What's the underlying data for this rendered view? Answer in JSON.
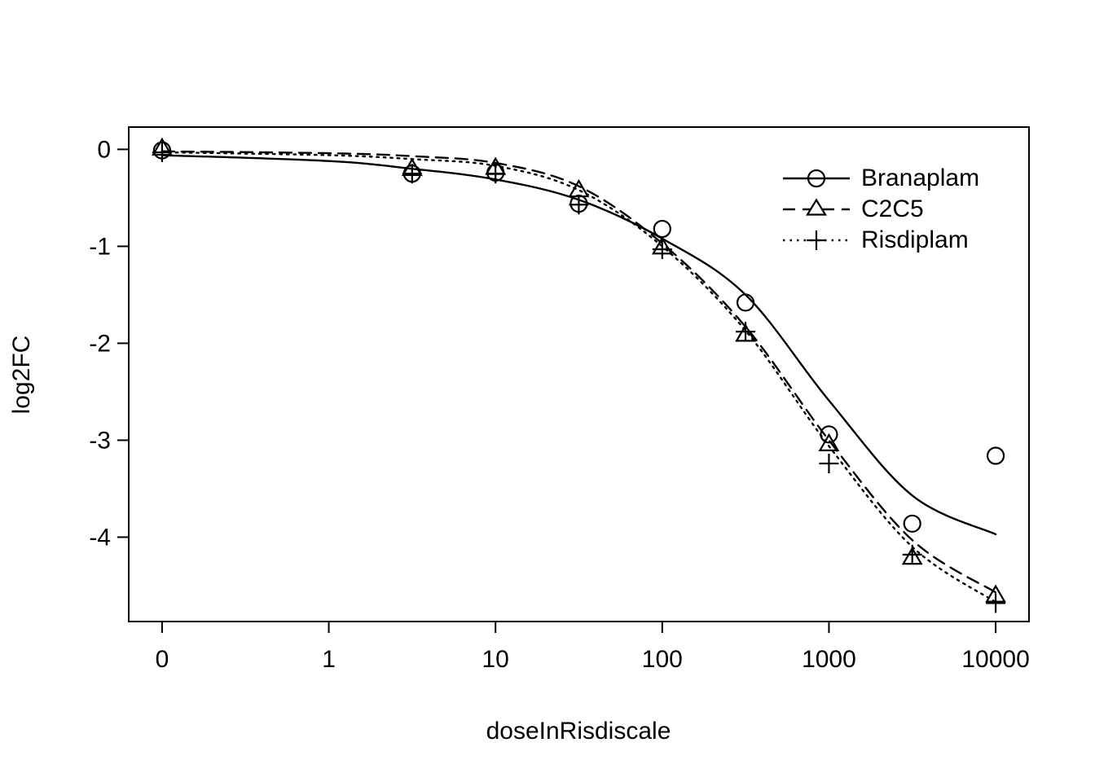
{
  "chart_data": {
    "type": "scatter",
    "title": "",
    "xlabel": "doseInRisdiscale",
    "ylabel": "log2FC",
    "background_color": "#ffffff",
    "foreground_color": "#000000",
    "grid": false,
    "x_scale": "log10, zero dose plotted at pseudo-log position",
    "zero_dose_log_pos": -1.0,
    "xlim_log": [
      -1.2,
      4.2
    ],
    "ylim": [
      -4.87,
      0.23
    ],
    "x_ticks": {
      "values": [
        0,
        1,
        10,
        100,
        1000,
        10000
      ],
      "labels": [
        "0",
        "1",
        "10",
        "100",
        "1000",
        "10000"
      ]
    },
    "y_ticks": {
      "values": [
        0,
        -1,
        -2,
        -3,
        -4
      ],
      "labels": [
        "0",
        "-1",
        "-2",
        "-3",
        "-4"
      ]
    },
    "doses": [
      0,
      3.16,
      10,
      31.6,
      100,
      316,
      1000,
      3160,
      10000
    ],
    "legend_position": "top-right",
    "series": [
      {
        "name": "Branaplam",
        "marker": "circle",
        "line_style": "solid",
        "points": [
          [
            0,
            -0.01
          ],
          [
            3.16,
            -0.25
          ],
          [
            10,
            -0.24
          ],
          [
            31.6,
            -0.56
          ],
          [
            100,
            -0.82
          ],
          [
            316,
            -1.58
          ],
          [
            1000,
            -2.94
          ],
          [
            3160,
            -3.86
          ],
          [
            10000,
            -3.16
          ]
        ],
        "fit": [
          [
            0,
            -0.06
          ],
          [
            1,
            -0.12
          ],
          [
            3.16,
            -0.2
          ],
          [
            10,
            -0.31
          ],
          [
            31.6,
            -0.52
          ],
          [
            100,
            -0.92
          ],
          [
            316,
            -1.5
          ],
          [
            1000,
            -2.59
          ],
          [
            3160,
            -3.57
          ],
          [
            10000,
            -3.97
          ]
        ]
      },
      {
        "name": "C2C5",
        "marker": "triangle",
        "line_style": "dashed",
        "points": [
          [
            0,
            0.0
          ],
          [
            3.16,
            -0.21
          ],
          [
            10,
            -0.2
          ],
          [
            31.6,
            -0.43
          ],
          [
            100,
            -1.02
          ],
          [
            316,
            -1.92
          ],
          [
            1000,
            -3.05
          ],
          [
            3160,
            -4.22
          ],
          [
            10000,
            -4.61
          ]
        ],
        "fit": [
          [
            0,
            -0.02
          ],
          [
            1,
            -0.04
          ],
          [
            3.16,
            -0.07
          ],
          [
            10,
            -0.14
          ],
          [
            31.6,
            -0.38
          ],
          [
            100,
            -0.97
          ],
          [
            316,
            -1.83
          ],
          [
            1000,
            -3.0
          ],
          [
            3160,
            -4.03
          ],
          [
            10000,
            -4.57
          ]
        ]
      },
      {
        "name": "Risdiplam",
        "marker": "plus",
        "line_style": "dotted",
        "points": [
          [
            0,
            -0.03
          ],
          [
            3.16,
            -0.25
          ],
          [
            10,
            -0.25
          ],
          [
            31.6,
            -0.57
          ],
          [
            100,
            -1.03
          ],
          [
            316,
            -1.88
          ],
          [
            1000,
            -3.24
          ],
          [
            3160,
            -4.18
          ],
          [
            10000,
            -4.68
          ]
        ],
        "fit": [
          [
            0,
            -0.03
          ],
          [
            1,
            -0.06
          ],
          [
            3.16,
            -0.1
          ],
          [
            10,
            -0.17
          ],
          [
            31.6,
            -0.42
          ],
          [
            100,
            -1.0
          ],
          [
            316,
            -1.87
          ],
          [
            1000,
            -3.06
          ],
          [
            3160,
            -4.1
          ],
          [
            10000,
            -4.67
          ]
        ]
      }
    ]
  },
  "legend": {
    "items": [
      {
        "label": "Branaplam"
      },
      {
        "label": "C2C5"
      },
      {
        "label": "Risdiplam"
      }
    ]
  },
  "axes": {
    "x_title": "doseInRisdiscale",
    "y_title": "log2FC"
  }
}
